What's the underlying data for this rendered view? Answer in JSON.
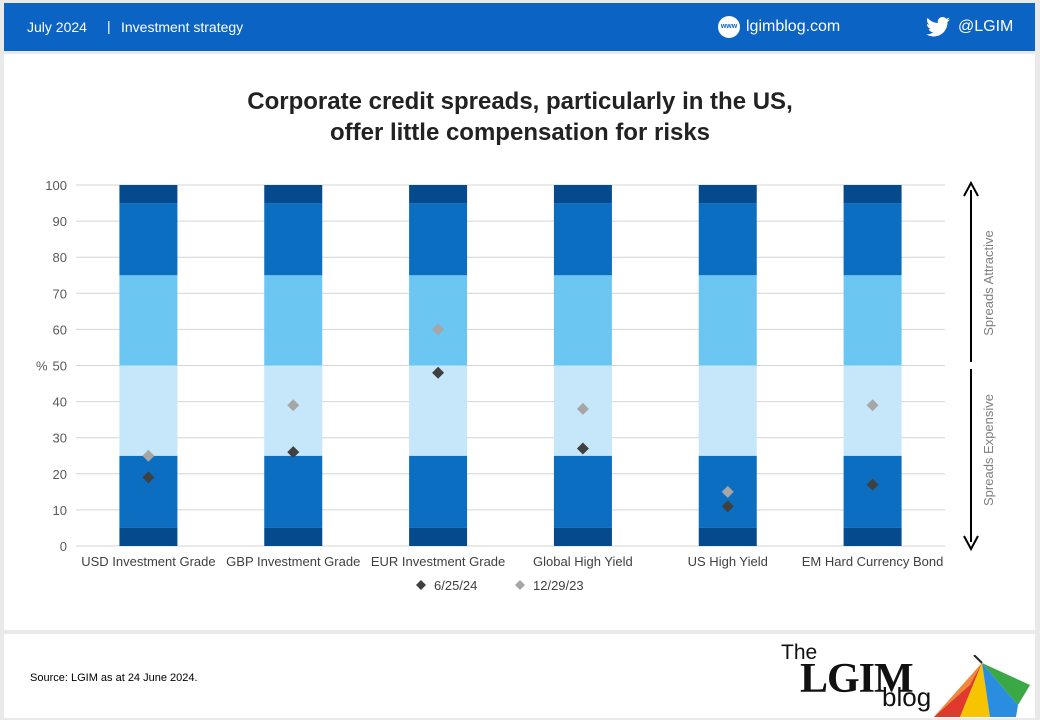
{
  "header": {
    "date": "July 2024",
    "separator": "|",
    "section": "Investment strategy",
    "site_icon": "www-globe-icon",
    "site_icon_label": "www",
    "site": "lgimblog.com",
    "social_icon": "twitter-bird-icon",
    "handle": "@LGIM"
  },
  "chart_data": {
    "type": "bar",
    "title": "Corporate credit spreads, particularly in the US, offer little compensation for risks",
    "title_lines": [
      "Corporate credit spreads, particularly in the US,",
      "offer little compensation for risks"
    ],
    "ylabel": "%",
    "ylim": [
      0,
      100
    ],
    "yticks": [
      0,
      10,
      20,
      30,
      40,
      50,
      60,
      70,
      80,
      90,
      100
    ],
    "grid": true,
    "stacked": true,
    "categories": [
      "USD Investment Grade",
      "GBP Investment Grade",
      "EUR Investment Grade",
      "Global High Yield",
      "US High Yield",
      "EM Hard Currency Bond"
    ],
    "bands": [
      {
        "from": 0,
        "to": 5,
        "color": "#064a8e"
      },
      {
        "from": 5,
        "to": 25,
        "color": "#0b6ec0"
      },
      {
        "from": 25,
        "to": 50,
        "color": "#c6e6fa"
      },
      {
        "from": 50,
        "to": 75,
        "color": "#6cc6f2"
      },
      {
        "from": 75,
        "to": 95,
        "color": "#0b6ec0"
      },
      {
        "from": 95,
        "to": 100,
        "color": "#064a8e"
      }
    ],
    "series": [
      {
        "name": "6/25/24",
        "type": "scatter",
        "marker": "diamond",
        "color": "#404040",
        "values": [
          19,
          26,
          48,
          27,
          11,
          17
        ]
      },
      {
        "name": "12/29/23",
        "type": "scatter",
        "marker": "diamond",
        "color": "#a6a6a6",
        "values": [
          25,
          39,
          60,
          38,
          15,
          39
        ]
      }
    ],
    "legend_position": "bottom",
    "annotations": {
      "upper": "Spreads Attractive",
      "lower": "Spreads Expensive"
    }
  },
  "footer": {
    "source": "Source: LGIM as at 24 June 2024.",
    "logo_the": "The",
    "logo_lgim": "LGIM",
    "logo_blog": "blog"
  }
}
